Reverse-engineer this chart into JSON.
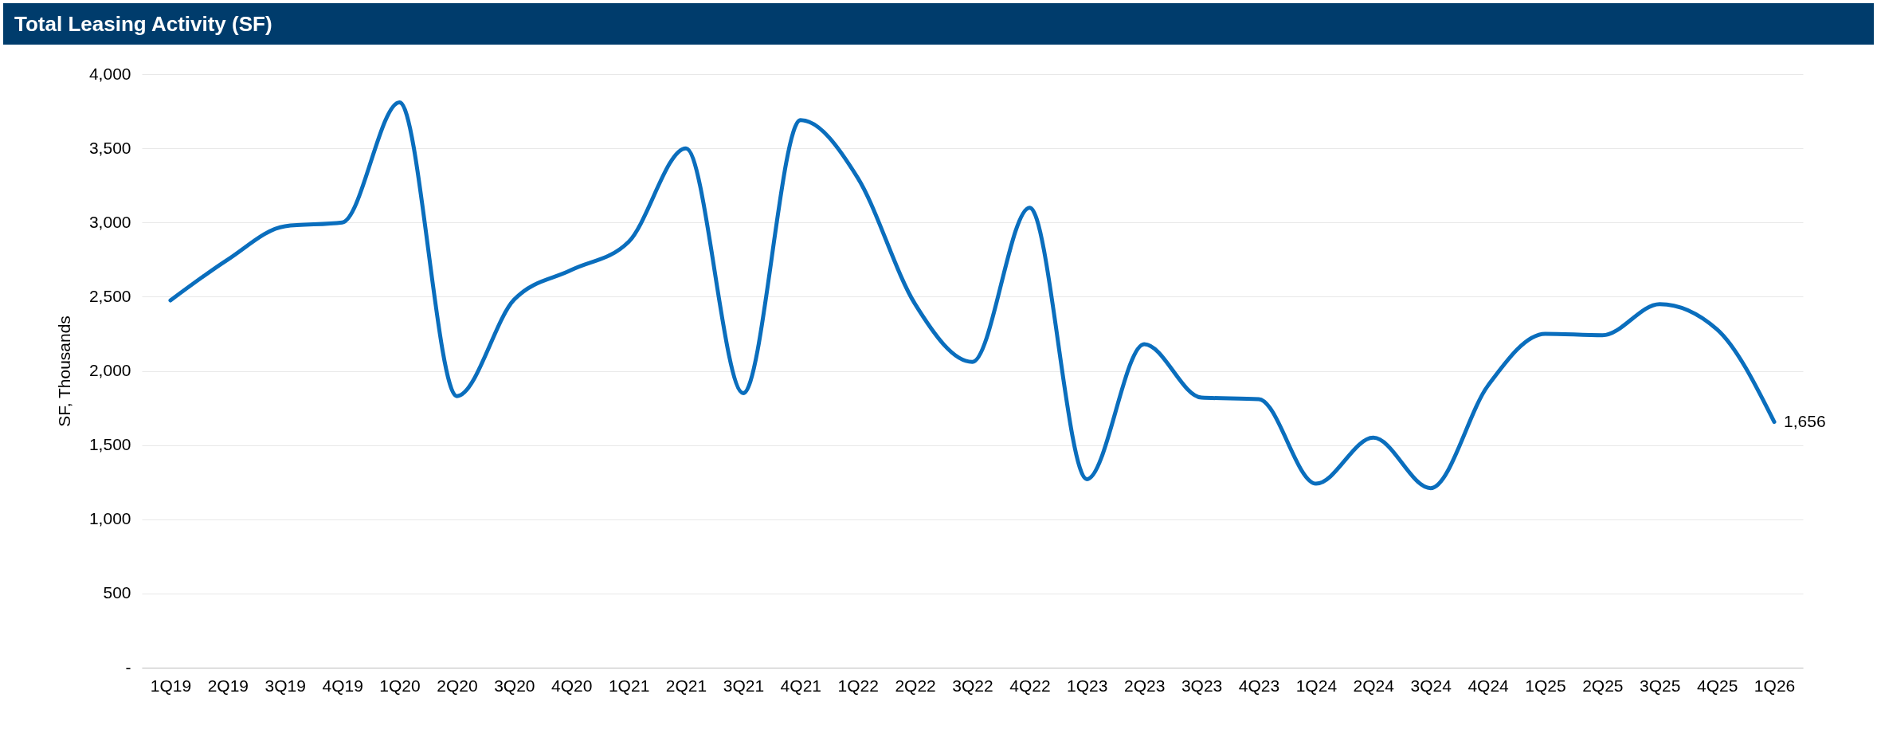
{
  "chart_data": {
    "type": "line",
    "title": "Total Leasing Activity (SF)",
    "ylabel": "SF, Thousands",
    "categories": [
      "1Q19",
      "2Q19",
      "3Q19",
      "4Q19",
      "1Q20",
      "2Q20",
      "3Q20",
      "4Q20",
      "1Q21",
      "2Q21",
      "3Q21",
      "4Q21",
      "1Q22",
      "2Q22",
      "3Q22",
      "4Q22",
      "1Q23",
      "2Q23",
      "3Q23",
      "4Q23",
      "1Q24",
      "2Q24",
      "3Q24",
      "4Q24",
      "1Q25",
      "2Q25",
      "3Q25",
      "4Q25",
      "1Q26"
    ],
    "series": [
      {
        "color": "#0a6ebd",
        "values": [
          2475,
          2750,
          2975,
          3000,
          3810,
          1830,
          2480,
          2680,
          2870,
          3500,
          1850,
          3690,
          3300,
          2450,
          2060,
          3100,
          1270,
          2180,
          1820,
          1810,
          1240,
          1550,
          1210,
          1900,
          2250,
          2240,
          2450,
          2280,
          1656
        ],
        "value_labels": [
          null,
          null,
          null,
          null,
          null,
          null,
          null,
          null,
          null,
          null,
          null,
          null,
          null,
          null,
          null,
          null,
          null,
          null,
          null,
          null,
          null,
          null,
          null,
          null,
          null,
          null,
          null,
          null,
          "1,656"
        ]
      }
    ],
    "ylim": [
      0,
      4000
    ],
    "yticks": [
      {
        "value": 0,
        "label": "-"
      },
      500,
      {
        "value": 1000,
        "label": "1,000"
      },
      {
        "value": 1500,
        "label": "1,500"
      },
      {
        "value": 2000,
        "label": "2,000"
      },
      {
        "value": 2500,
        "label": "2,500"
      },
      {
        "value": 3000,
        "label": "3,000"
      },
      {
        "value": 3500,
        "label": "3,500"
      },
      {
        "value": 4000,
        "label": "4,000"
      }
    ],
    "grid": "y",
    "marker": "none",
    "line_style": "solid"
  }
}
